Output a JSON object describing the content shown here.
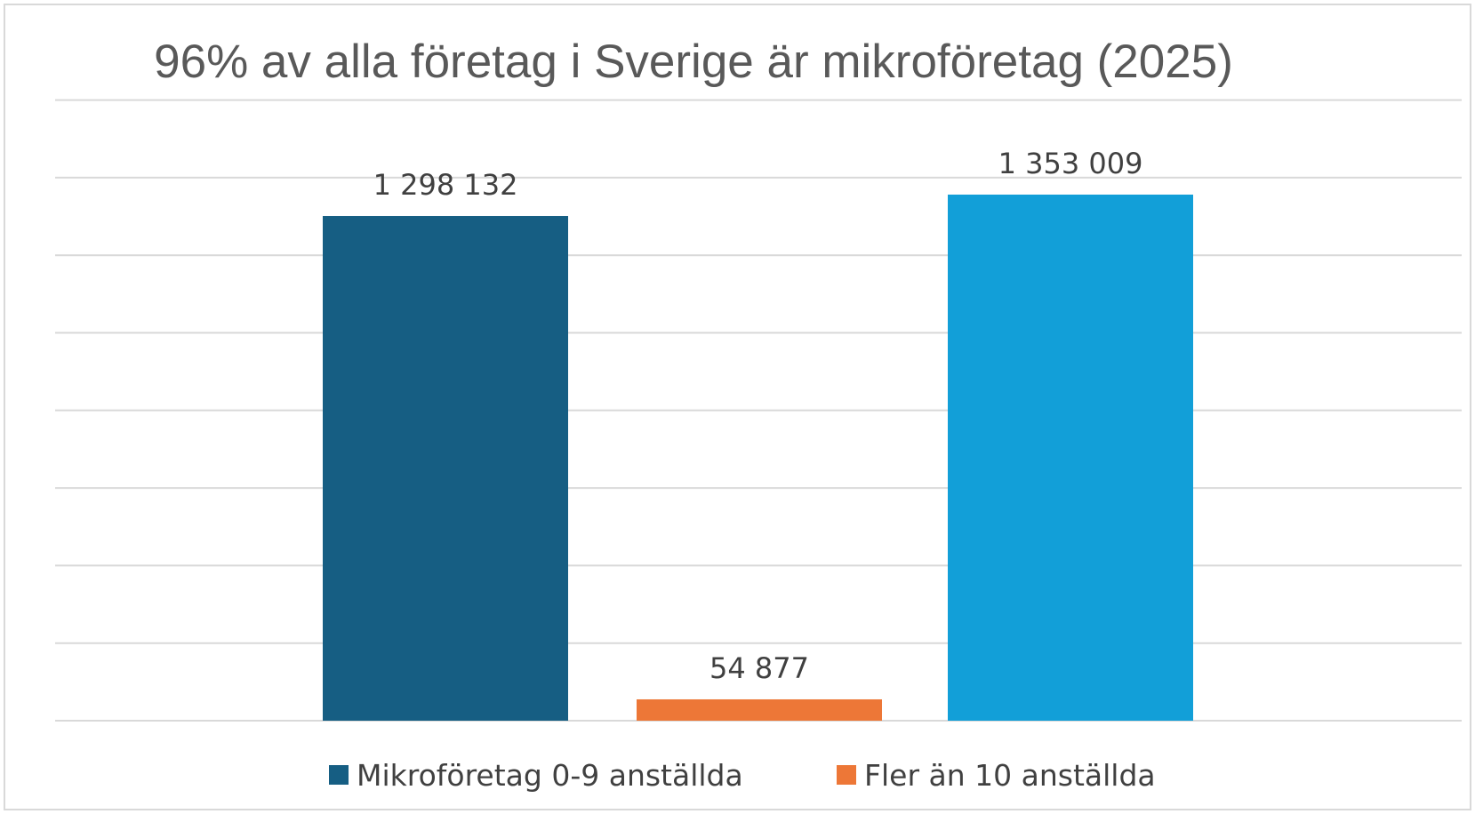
{
  "chart_data": {
    "type": "bar",
    "title": "96% av alla företag i Sverige är mikroföretag (2025)",
    "xlabel": "",
    "ylabel": "",
    "ylim": [
      0,
      1400000
    ],
    "grid": true,
    "legend_position": "bottom",
    "bars": [
      {
        "series": "Mikroföretag 0-9 anställda",
        "value": 1298132,
        "label": "1 298 132",
        "color": "#165E83"
      },
      {
        "series": "Fler än 10 anställda",
        "value": 54877,
        "label": "54 877",
        "color": "#ED7737"
      },
      {
        "value": 1353009,
        "label": "1 353 009",
        "color": "#129FD8"
      }
    ],
    "legend": [
      {
        "name": "Mikroföretag 0-9 anställda",
        "color": "#165E83"
      },
      {
        "name": "Fler än 10 anställda",
        "color": "#ED7737"
      }
    ]
  },
  "colors": {
    "grid": "#d9d9d9",
    "title": "#595959",
    "label": "#404040",
    "frame": "#d9d9d9"
  }
}
